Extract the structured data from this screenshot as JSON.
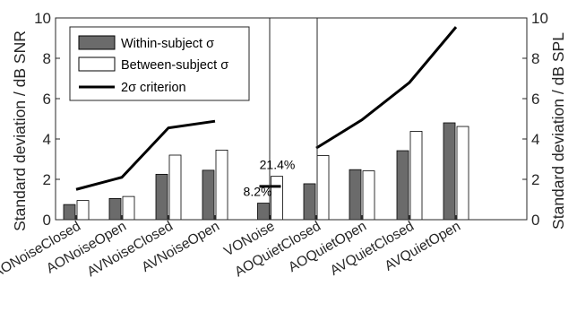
{
  "chart_data": {
    "type": "bar",
    "categories": [
      "AONoiseClosed",
      "AONoiseOpen",
      "AVNoiseClosed",
      "AVNoiseOpen",
      "VONoise",
      "AOQuietClosed",
      "AOQuietOpen",
      "AVQuietClosed",
      "AVQuietOpen"
    ],
    "series": [
      {
        "name": "Within-subject σ",
        "values": [
          0.75,
          1.05,
          2.25,
          2.45,
          0.82,
          1.78,
          2.48,
          3.42,
          4.8
        ],
        "color": "#6b6b6b"
      },
      {
        "name": "Between-subject σ",
        "values": [
          0.95,
          1.15,
          3.2,
          3.45,
          2.15,
          3.18,
          2.42,
          4.38,
          4.62
        ],
        "color": "#ffffff"
      }
    ],
    "criterion": {
      "name": "2σ criterion",
      "groups": [
        {
          "axis": "left",
          "categories": [
            "AONoiseClosed",
            "AONoiseOpen",
            "AVNoiseClosed",
            "AVNoiseOpen"
          ],
          "values": [
            1.5,
            2.1,
            4.55,
            4.88
          ]
        },
        {
          "axis": "left",
          "categories": [
            "VONoise"
          ],
          "values": [
            1.65
          ]
        },
        {
          "axis": "right",
          "categories": [
            "AOQuietClosed",
            "AOQuietOpen",
            "AVQuietClosed",
            "AVQuietOpen"
          ],
          "values": [
            3.55,
            4.95,
            6.8,
            9.55
          ]
        }
      ]
    },
    "annotations": [
      {
        "text": "8.2%",
        "category": "VONoise",
        "series": "Within-subject σ"
      },
      {
        "text": "21.4%",
        "category": "VONoise",
        "series": "Between-subject σ"
      }
    ],
    "ylabel_left": "Standard deviation / dB SNR",
    "ylabel_right": "Standard deviation / dB SPL",
    "ylim": [
      0,
      10
    ],
    "yticks": [
      "0",
      "2",
      "4",
      "6",
      "8",
      "10"
    ],
    "grid": false,
    "legend": "top-left"
  }
}
